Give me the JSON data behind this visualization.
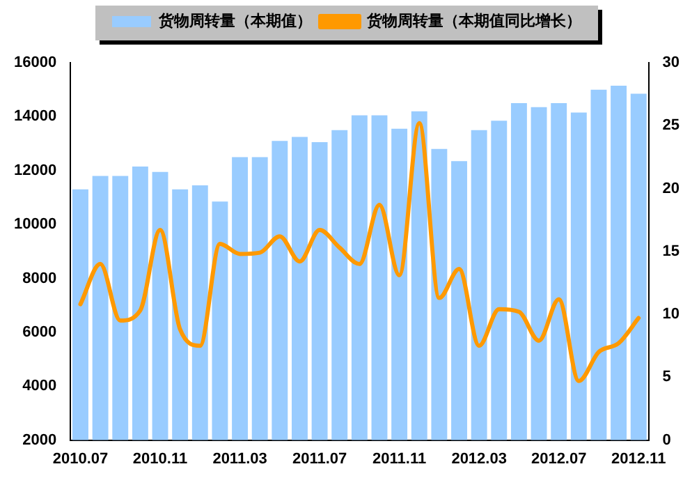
{
  "chart_data": {
    "type": "bar",
    "categories": [
      "2010.07",
      null,
      null,
      null,
      "2010.11",
      null,
      null,
      null,
      "2011.03",
      null,
      null,
      null,
      "2011.07",
      null,
      null,
      null,
      "2011.11",
      null,
      null,
      null,
      "2012.03",
      null,
      null,
      null,
      "2012.07",
      null,
      null,
      null,
      "2012.11"
    ],
    "series": [
      {
        "name": "货物周转量（本期值）",
        "color": "#99ccff",
        "values": [
          11300,
          11800,
          11800,
          12150,
          11950,
          11300,
          11450,
          10850,
          12500,
          12500,
          13100,
          13250,
          13050,
          13500,
          14050,
          14050,
          13550,
          14200,
          12800,
          12350,
          13500,
          13850,
          14500,
          14350,
          14500,
          14150,
          15000,
          15150,
          14850
        ]
      },
      {
        "name": "货物周转量（本期值同比增长）",
        "type": "line",
        "axis": "y2",
        "color": "#ff9900",
        "values": [
          10.8,
          14.0,
          9.5,
          10.3,
          16.7,
          8.8,
          7.5,
          15.6,
          14.8,
          14.9,
          16.2,
          14.2,
          16.7,
          15.3,
          14.0,
          18.7,
          13.1,
          25.2,
          11.3,
          13.6,
          7.5,
          10.4,
          10.2,
          7.9,
          11.2,
          4.7,
          7.0,
          7.7,
          9.7
        ]
      }
    ],
    "ylim": [
      2000,
      16000
    ],
    "yticks": [
      2000,
      4000,
      6000,
      8000,
      10000,
      12000,
      14000,
      16000
    ],
    "y2lim": [
      0,
      30
    ],
    "y2ticks": [
      0,
      5,
      10,
      15,
      20,
      25,
      30
    ],
    "grid": false,
    "legend": "top",
    "marker": "none",
    "line_style": "solid"
  }
}
